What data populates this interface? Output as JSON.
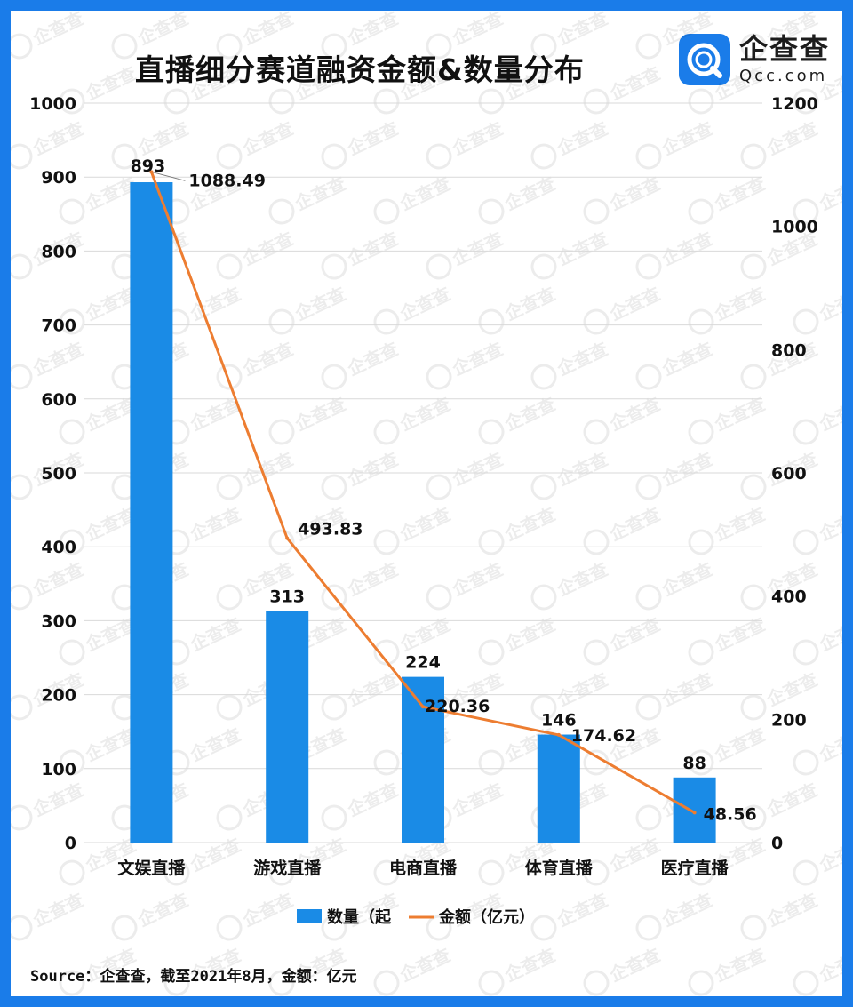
{
  "header": {
    "title": "直播细分赛道融资金额&数量分布",
    "logo_cn": "企查查",
    "logo_en": "Qcc.com"
  },
  "watermark_text": "企查查",
  "footer": {
    "source": "Source：企查查，截至2021年8月，金额：亿元"
  },
  "colors": {
    "border": "#1a7ce9",
    "bar": "#1a8be6",
    "line": "#ed7d31",
    "grid": "#d9d9d9"
  },
  "chart_data": {
    "type": "bar",
    "title": "直播细分赛道融资金额&数量分布",
    "categories": [
      "文娱直播",
      "游戏直播",
      "电商直播",
      "体育直播",
      "医疗直播"
    ],
    "series": [
      {
        "name": "数量（起",
        "type": "bar",
        "axis": "left",
        "values": [
          893,
          313,
          224,
          146,
          88
        ]
      },
      {
        "name": "金额（亿元）",
        "type": "line",
        "axis": "right",
        "values": [
          1088.49,
          493.83,
          220.36,
          174.62,
          48.56
        ]
      }
    ],
    "y_left": {
      "ylim": [
        0,
        1000
      ],
      "ticks": [
        0,
        100,
        200,
        300,
        400,
        500,
        600,
        700,
        800,
        900,
        1000
      ]
    },
    "y_right": {
      "ylim": [
        0,
        1200
      ],
      "ticks": [
        0,
        200,
        400,
        600,
        800,
        1000,
        1200
      ]
    },
    "grid": true,
    "legend": "bottom"
  }
}
